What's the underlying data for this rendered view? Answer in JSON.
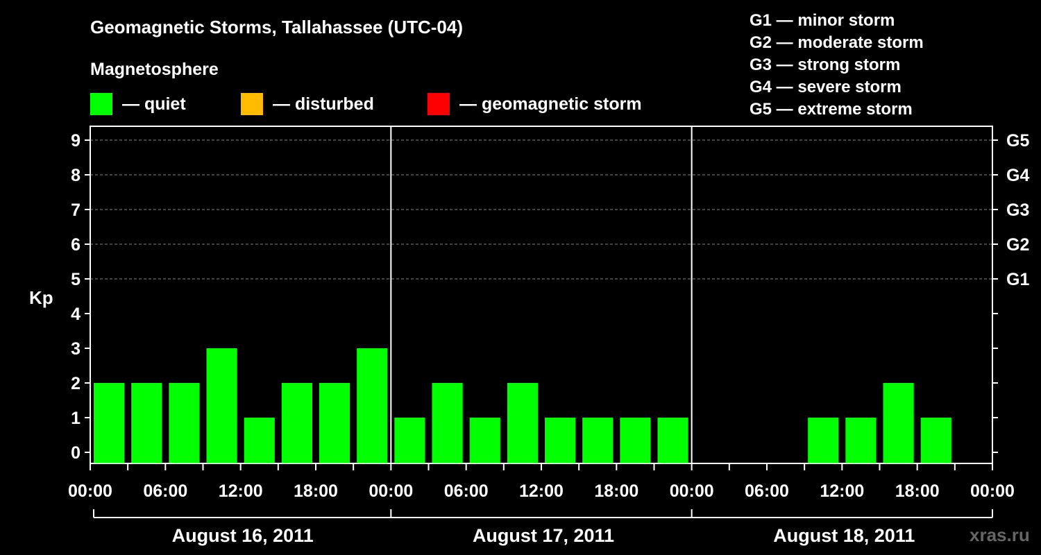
{
  "chart_data": {
    "type": "bar",
    "title": "Geomagnetic Storms, Tallahassee (UTC-04)",
    "subtitle": "Magnetosphere",
    "ylabel": "Kp",
    "ylim": [
      0,
      9
    ],
    "grid": true,
    "legend": [
      {
        "label": "— quiet",
        "color": "#00ff00"
      },
      {
        "label": "— disturbed",
        "color": "#ffbb00"
      },
      {
        "label": "— geomagnetic storm",
        "color": "#ff0000"
      }
    ],
    "storm_scale": [
      "G1 — minor storm",
      "G2 — moderate storm",
      "G3 — strong storm",
      "G4 — severe storm",
      "G5 — extreme storm"
    ],
    "y_ticks": [
      "0",
      "1",
      "2",
      "3",
      "4",
      "5",
      "6",
      "7",
      "8",
      "9"
    ],
    "right_ticks": [
      {
        "kp": 5,
        "label": "G1"
      },
      {
        "kp": 6,
        "label": "G2"
      },
      {
        "kp": 7,
        "label": "G3"
      },
      {
        "kp": 8,
        "label": "G4"
      },
      {
        "kp": 9,
        "label": "G5"
      }
    ],
    "x_tick_labels": [
      "00:00",
      "06:00",
      "12:00",
      "18:00",
      "00:00",
      "06:00",
      "12:00",
      "18:00",
      "00:00",
      "06:00",
      "12:00",
      "18:00",
      "00:00"
    ],
    "days": [
      "August 16, 2011",
      "August 17, 2011",
      "August 18, 2011"
    ],
    "bar_color": "#00ff00",
    "series": [
      {
        "values": [
          2,
          2,
          2,
          3,
          1,
          2,
          2,
          3,
          1,
          2,
          1,
          2,
          1,
          1,
          1,
          1,
          null,
          null,
          null,
          1,
          1,
          2,
          1,
          null
        ]
      }
    ]
  },
  "watermark": "xras.ru"
}
